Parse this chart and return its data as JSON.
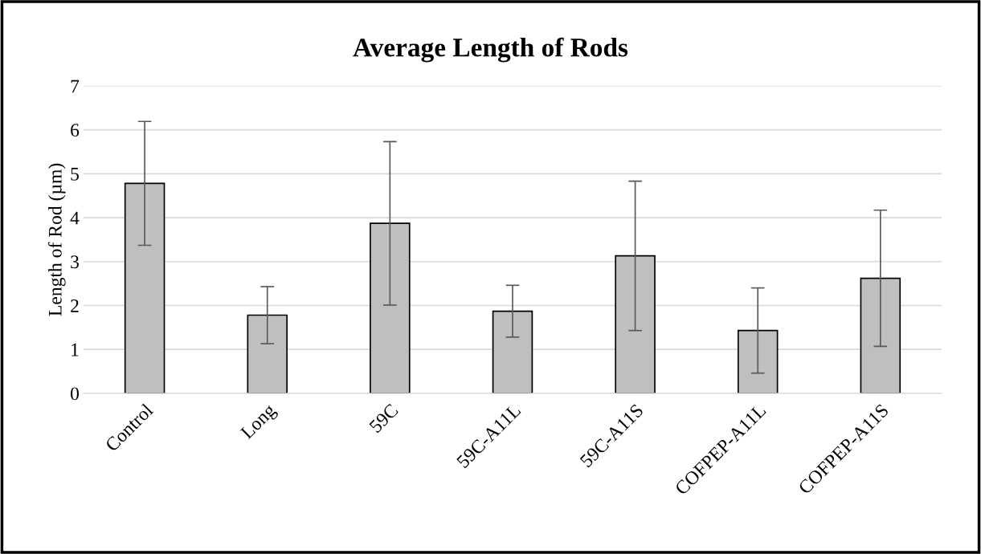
{
  "chart_data": {
    "type": "bar",
    "title": "Average Length of Rods",
    "ylabel": "Length of Rod (µm)",
    "categories": [
      "Control",
      "Long",
      "59C",
      "59C-A11L",
      "59C-A11S",
      "COFPEP-A11L",
      "COFPEP-A11S"
    ],
    "values": [
      4.78,
      1.78,
      3.87,
      1.87,
      3.13,
      1.43,
      2.62
    ],
    "errors": [
      1.41,
      0.65,
      1.86,
      0.59,
      1.7,
      0.97,
      1.55
    ],
    "color": "#bfbfbf",
    "ylim": [
      0,
      7
    ],
    "yticks": [
      0,
      1,
      2,
      3,
      4,
      5,
      6,
      7
    ],
    "grid": "y"
  }
}
